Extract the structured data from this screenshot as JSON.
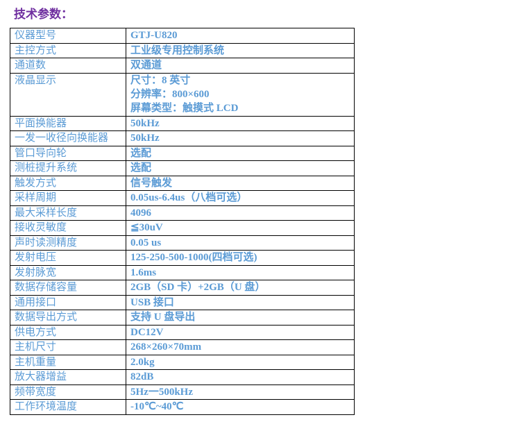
{
  "title": "技术参数：",
  "colors": {
    "title": "#7030a0",
    "text": "#5b9bd5",
    "border": "#000000"
  },
  "rows": [
    {
      "label": "仪器型号",
      "value": [
        "GTJ-U820"
      ]
    },
    {
      "label": "主控方式",
      "value": [
        "工业级专用控制系统"
      ]
    },
    {
      "label": "通道数",
      "value": [
        "双通道"
      ]
    },
    {
      "label": "液晶显示",
      "value": [
        "尺寸：8 英寸",
        "分辨率：800×600",
        "屏幕类型：触摸式 LCD"
      ]
    },
    {
      "label": "平面换能器",
      "value": [
        "50kHz"
      ]
    },
    {
      "label": "一发一收径向换能器",
      "value": [
        "50kHz"
      ]
    },
    {
      "label": "管口导向轮",
      "value": [
        "选配"
      ]
    },
    {
      "label": "测桩提升系统",
      "value": [
        "选配"
      ]
    },
    {
      "label": "触发方式",
      "value": [
        "信号触发"
      ]
    },
    {
      "label": "采样周期",
      "value": [
        "0.05us-6.4us（八档可选）"
      ]
    },
    {
      "label": "最大采样长度",
      "value": [
        "4096"
      ]
    },
    {
      "label": "接收灵敏度",
      "value": [
        "≦30uV"
      ]
    },
    {
      "label": "声时读测精度",
      "value": [
        "0.05 us"
      ]
    },
    {
      "label": "发射电压",
      "value": [
        "125-250-500-1000(四档可选)"
      ]
    },
    {
      "label": "发射脉宽",
      "value": [
        "1.6ms"
      ]
    },
    {
      "label": "数据存储容量",
      "value": [
        "2GB（SD 卡）+2GB（U 盘）"
      ]
    },
    {
      "label": "通用接口",
      "value": [
        "USB 接口"
      ]
    },
    {
      "label": "数据导出方式",
      "value": [
        "支持 U 盘导出"
      ]
    },
    {
      "label": "供电方式",
      "value": [
        "DC12V"
      ]
    },
    {
      "label": "主机尺寸",
      "value": [
        "268×260×70mm"
      ]
    },
    {
      "label": "主机重量",
      "value": [
        "2.0kg"
      ]
    },
    {
      "label": "放大器增益",
      "value": [
        "82dB"
      ]
    },
    {
      "label": "频带宽度",
      "value": [
        "5Hz一500kHz"
      ]
    },
    {
      "label": "工作环境温度",
      "value": [
        "-10℃~40℃"
      ]
    }
  ]
}
